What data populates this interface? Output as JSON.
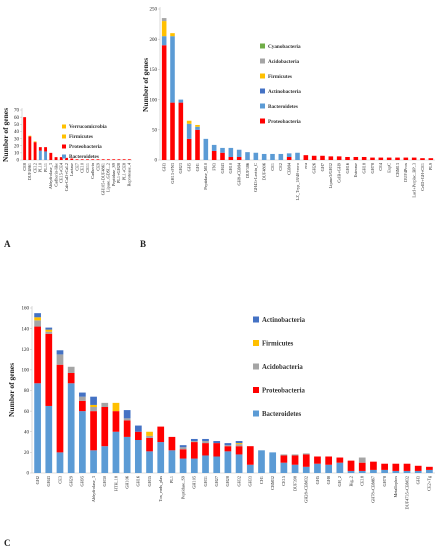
{
  "colors": {
    "Bacteroidetes": "#5b9bd5",
    "Proteobacteria": "#ff0000",
    "Acidobacteria": "#a5a5a5",
    "Firmicutes": "#ffc000",
    "Actinobacteria": "#4472c4",
    "Cyanobacteria": "#70ad47",
    "Verrucomicrobia": "#ffc000"
  },
  "chart_data": [
    {
      "panel": "A",
      "type": "bar",
      "stacked": true,
      "ylabel": "Number of genes",
      "ylim": [
        0,
        70
      ],
      "yticks": [
        0,
        10,
        20,
        30,
        40,
        50,
        60,
        70
      ],
      "categories": [
        "CE8",
        "DUF4861",
        "CE12",
        "PL10",
        "PL11",
        "Abhydrolase_3",
        "Cadherin-like",
        "CE15+CE4",
        "Cab-CaD+CaL2",
        "Lactase",
        "CE7",
        "CE10",
        "CE11",
        "Cadherin",
        "CE9",
        "GH105+DUF4861",
        "Lipase_GDSL_2",
        "Peptidase_S9",
        "PL1+GH28",
        "PL1+CE8",
        "Reprotease_4"
      ],
      "series": [
        {
          "name": "Bacteroidetes",
          "values": [
            0,
            0,
            0,
            13,
            12,
            0,
            0,
            0,
            0,
            0,
            0,
            0,
            0,
            0,
            0,
            0,
            0,
            0,
            0,
            0,
            0
          ]
        },
        {
          "name": "Proteobacteria",
          "values": [
            60,
            33,
            25,
            5,
            6,
            10,
            4,
            4,
            3,
            2,
            1,
            1,
            1,
            1,
            1,
            1,
            1,
            1,
            1,
            1,
            1
          ]
        },
        {
          "name": "Firmicutes",
          "values": [
            0,
            0,
            0,
            0,
            0,
            0,
            0,
            0,
            0,
            0,
            0,
            0,
            0,
            0,
            0,
            0,
            0,
            0,
            0,
            0,
            0
          ]
        },
        {
          "name": "Verrucomicrobia",
          "values": [
            0,
            1,
            1,
            0,
            0,
            0,
            0,
            0,
            0,
            0,
            0,
            0,
            0,
            0,
            0,
            0,
            0,
            0,
            0,
            0,
            0
          ]
        }
      ],
      "legend": [
        "Verrucomicrobia",
        "Firmicutes",
        "Proteobacteria",
        "Bacteroidetes"
      ]
    },
    {
      "panel": "B",
      "type": "bar",
      "stacked": true,
      "ylabel": "Number of genes",
      "ylim": [
        0,
        250
      ],
      "yticks": [
        0,
        50,
        100,
        150,
        200,
        250
      ],
      "categories": [
        "GH3",
        "GH13+FN3",
        "GH23",
        "GH5",
        "GH1",
        "Peptidase_M10",
        "FN3",
        "GH43",
        "GH10",
        "GH8+CBM4",
        "DUF386",
        "GH43+Lectin_C",
        "DUF4806",
        "CE1",
        "CE2",
        "CBM4",
        "LZ_Tryp_18/40+ecro",
        "eca",
        "GH26",
        "GH7",
        "Lipase3/GH32",
        "CelB+GH9",
        "GH16",
        "Esterase",
        "GH18",
        "GH78",
        "CE4",
        "ExpC",
        "CBM13",
        "DUF4Prox",
        "LacI+Perplsc_BP_3",
        "CelD+GH+CE1",
        "PL9"
      ],
      "series": [
        {
          "name": "Proteobacteria",
          "values": [
            190,
            95,
            95,
            35,
            50,
            0,
            15,
            12,
            5,
            5,
            0,
            0,
            0,
            0,
            0,
            5,
            0,
            8,
            7,
            7,
            6,
            6,
            5,
            5,
            5,
            4,
            4,
            4,
            4,
            4,
            4,
            3,
            3
          ]
        },
        {
          "name": "Bacteroidetes",
          "values": [
            15,
            110,
            5,
            25,
            5,
            35,
            10,
            8,
            15,
            12,
            13,
            12,
            10,
            10,
            10,
            6,
            12,
            0,
            0,
            0,
            0,
            0,
            0,
            0,
            0,
            0,
            0,
            0,
            0,
            0,
            0,
            0,
            0
          ]
        },
        {
          "name": "Actinobacteria",
          "values": [
            0,
            0,
            0,
            0,
            0,
            0,
            0,
            0,
            0,
            0,
            0,
            0,
            0,
            0,
            0,
            0,
            0,
            0,
            0,
            0,
            0,
            0,
            0,
            0,
            0,
            0,
            0,
            0,
            0,
            0,
            0,
            0,
            0
          ]
        },
        {
          "name": "Firmicutes",
          "values": [
            25,
            5,
            0,
            5,
            3,
            0,
            0,
            0,
            0,
            0,
            0,
            0,
            0,
            0,
            0,
            0,
            0,
            0,
            0,
            0,
            0,
            0,
            0,
            0,
            0,
            0,
            0,
            0,
            0,
            0,
            0,
            0,
            0
          ]
        },
        {
          "name": "Acidobacteria",
          "values": [
            5,
            0,
            0,
            0,
            0,
            0,
            0,
            0,
            0,
            0,
            0,
            0,
            0,
            0,
            0,
            0,
            0,
            0,
            0,
            0,
            0,
            0,
            0,
            0,
            0,
            0,
            0,
            0,
            0,
            0,
            0,
            0,
            0
          ]
        },
        {
          "name": "Cyanobacteria",
          "values": [
            0,
            0,
            0,
            0,
            0,
            0,
            0,
            0,
            0,
            0,
            0,
            0,
            0,
            0,
            0,
            0,
            0,
            0,
            0,
            0,
            0,
            0,
            0,
            0,
            0,
            0,
            0,
            0,
            0,
            0,
            0,
            0,
            0
          ]
        }
      ],
      "legend": [
        "Cyanobacteria",
        "Acidobacteria",
        "Firmicutes",
        "Actinobacteria",
        "Bacteroidetes",
        "Proteobacteria"
      ]
    },
    {
      "panel": "C",
      "type": "bar",
      "stacked": true,
      "ylabel": "Number of genes",
      "ylim": [
        0,
        160
      ],
      "yticks": [
        0,
        20,
        40,
        60,
        80,
        100,
        120,
        140,
        160
      ],
      "categories": [
        "GH2",
        "GH43",
        "CE3",
        "GH29",
        "GH95",
        "Abhydrolase_3",
        "GH30",
        "HTH_18",
        "GH106",
        "GH16",
        "GH35",
        "Tox_ends_plas",
        "PL1",
        "Peptidase_S9",
        "GH105",
        "GH31",
        "GH27",
        "GH28",
        "GH32",
        "GH33",
        "CH1",
        "CBM32",
        "CE15",
        "DUF398",
        "GH28+CBM32",
        "GH5",
        "GH8",
        "GH_2",
        "Big_2",
        "CE18",
        "GH78+CBM67",
        "GH78",
        "Metallophos",
        "DUF4735+CBM32",
        "GH3",
        "CE2+Tg"
      ],
      "series": [
        {
          "name": "Bacteroidetes",
          "values": [
            87,
            65,
            20,
            87,
            60,
            22,
            26,
            40,
            35,
            32,
            21,
            30,
            22,
            14,
            14,
            17,
            16,
            21,
            18,
            8,
            22,
            20,
            10,
            8,
            6,
            9,
            8,
            10,
            2,
            2,
            3,
            3,
            2,
            2,
            2,
            3
          ]
        },
        {
          "name": "Proteobacteria",
          "values": [
            55,
            70,
            85,
            10,
            10,
            38,
            38,
            20,
            16,
            8,
            13,
            15,
            13,
            9,
            16,
            12,
            13,
            5,
            8,
            18,
            0,
            0,
            7,
            9,
            12,
            7,
            8,
            5,
            10,
            8,
            8,
            6,
            7,
            7,
            5,
            3
          ]
        },
        {
          "name": "Acidobacteria",
          "values": [
            6,
            2,
            10,
            6,
            4,
            4,
            4,
            0,
            2,
            0,
            2,
            0,
            0,
            2,
            1,
            2,
            0,
            1,
            2,
            0,
            0,
            0,
            1,
            1,
            1,
            0,
            0,
            0,
            0,
            5,
            0,
            0,
            0,
            0,
            0,
            0
          ]
        },
        {
          "name": "Firmicutes",
          "values": [
            3,
            2,
            0,
            0,
            0,
            2,
            0,
            8,
            0,
            0,
            4,
            0,
            0,
            0,
            0,
            0,
            0,
            0,
            1,
            0,
            0,
            0,
            0,
            0,
            0,
            0,
            0,
            0,
            0,
            0,
            0,
            0,
            0,
            0,
            0,
            0
          ]
        },
        {
          "name": "Actinobacteria",
          "values": [
            4,
            2,
            4,
            0,
            4,
            8,
            0,
            0,
            8,
            6,
            0,
            0,
            0,
            2,
            2,
            2,
            2,
            2,
            2,
            0,
            0,
            0,
            0,
            0,
            0,
            0,
            0,
            0,
            0,
            0,
            0,
            0,
            0,
            0,
            0,
            0
          ]
        }
      ],
      "legend": [
        "Actinobacteria",
        "Firmicutes",
        "Acidobacteria",
        "Proteobacteria",
        "Bacteroidetes"
      ]
    }
  ]
}
